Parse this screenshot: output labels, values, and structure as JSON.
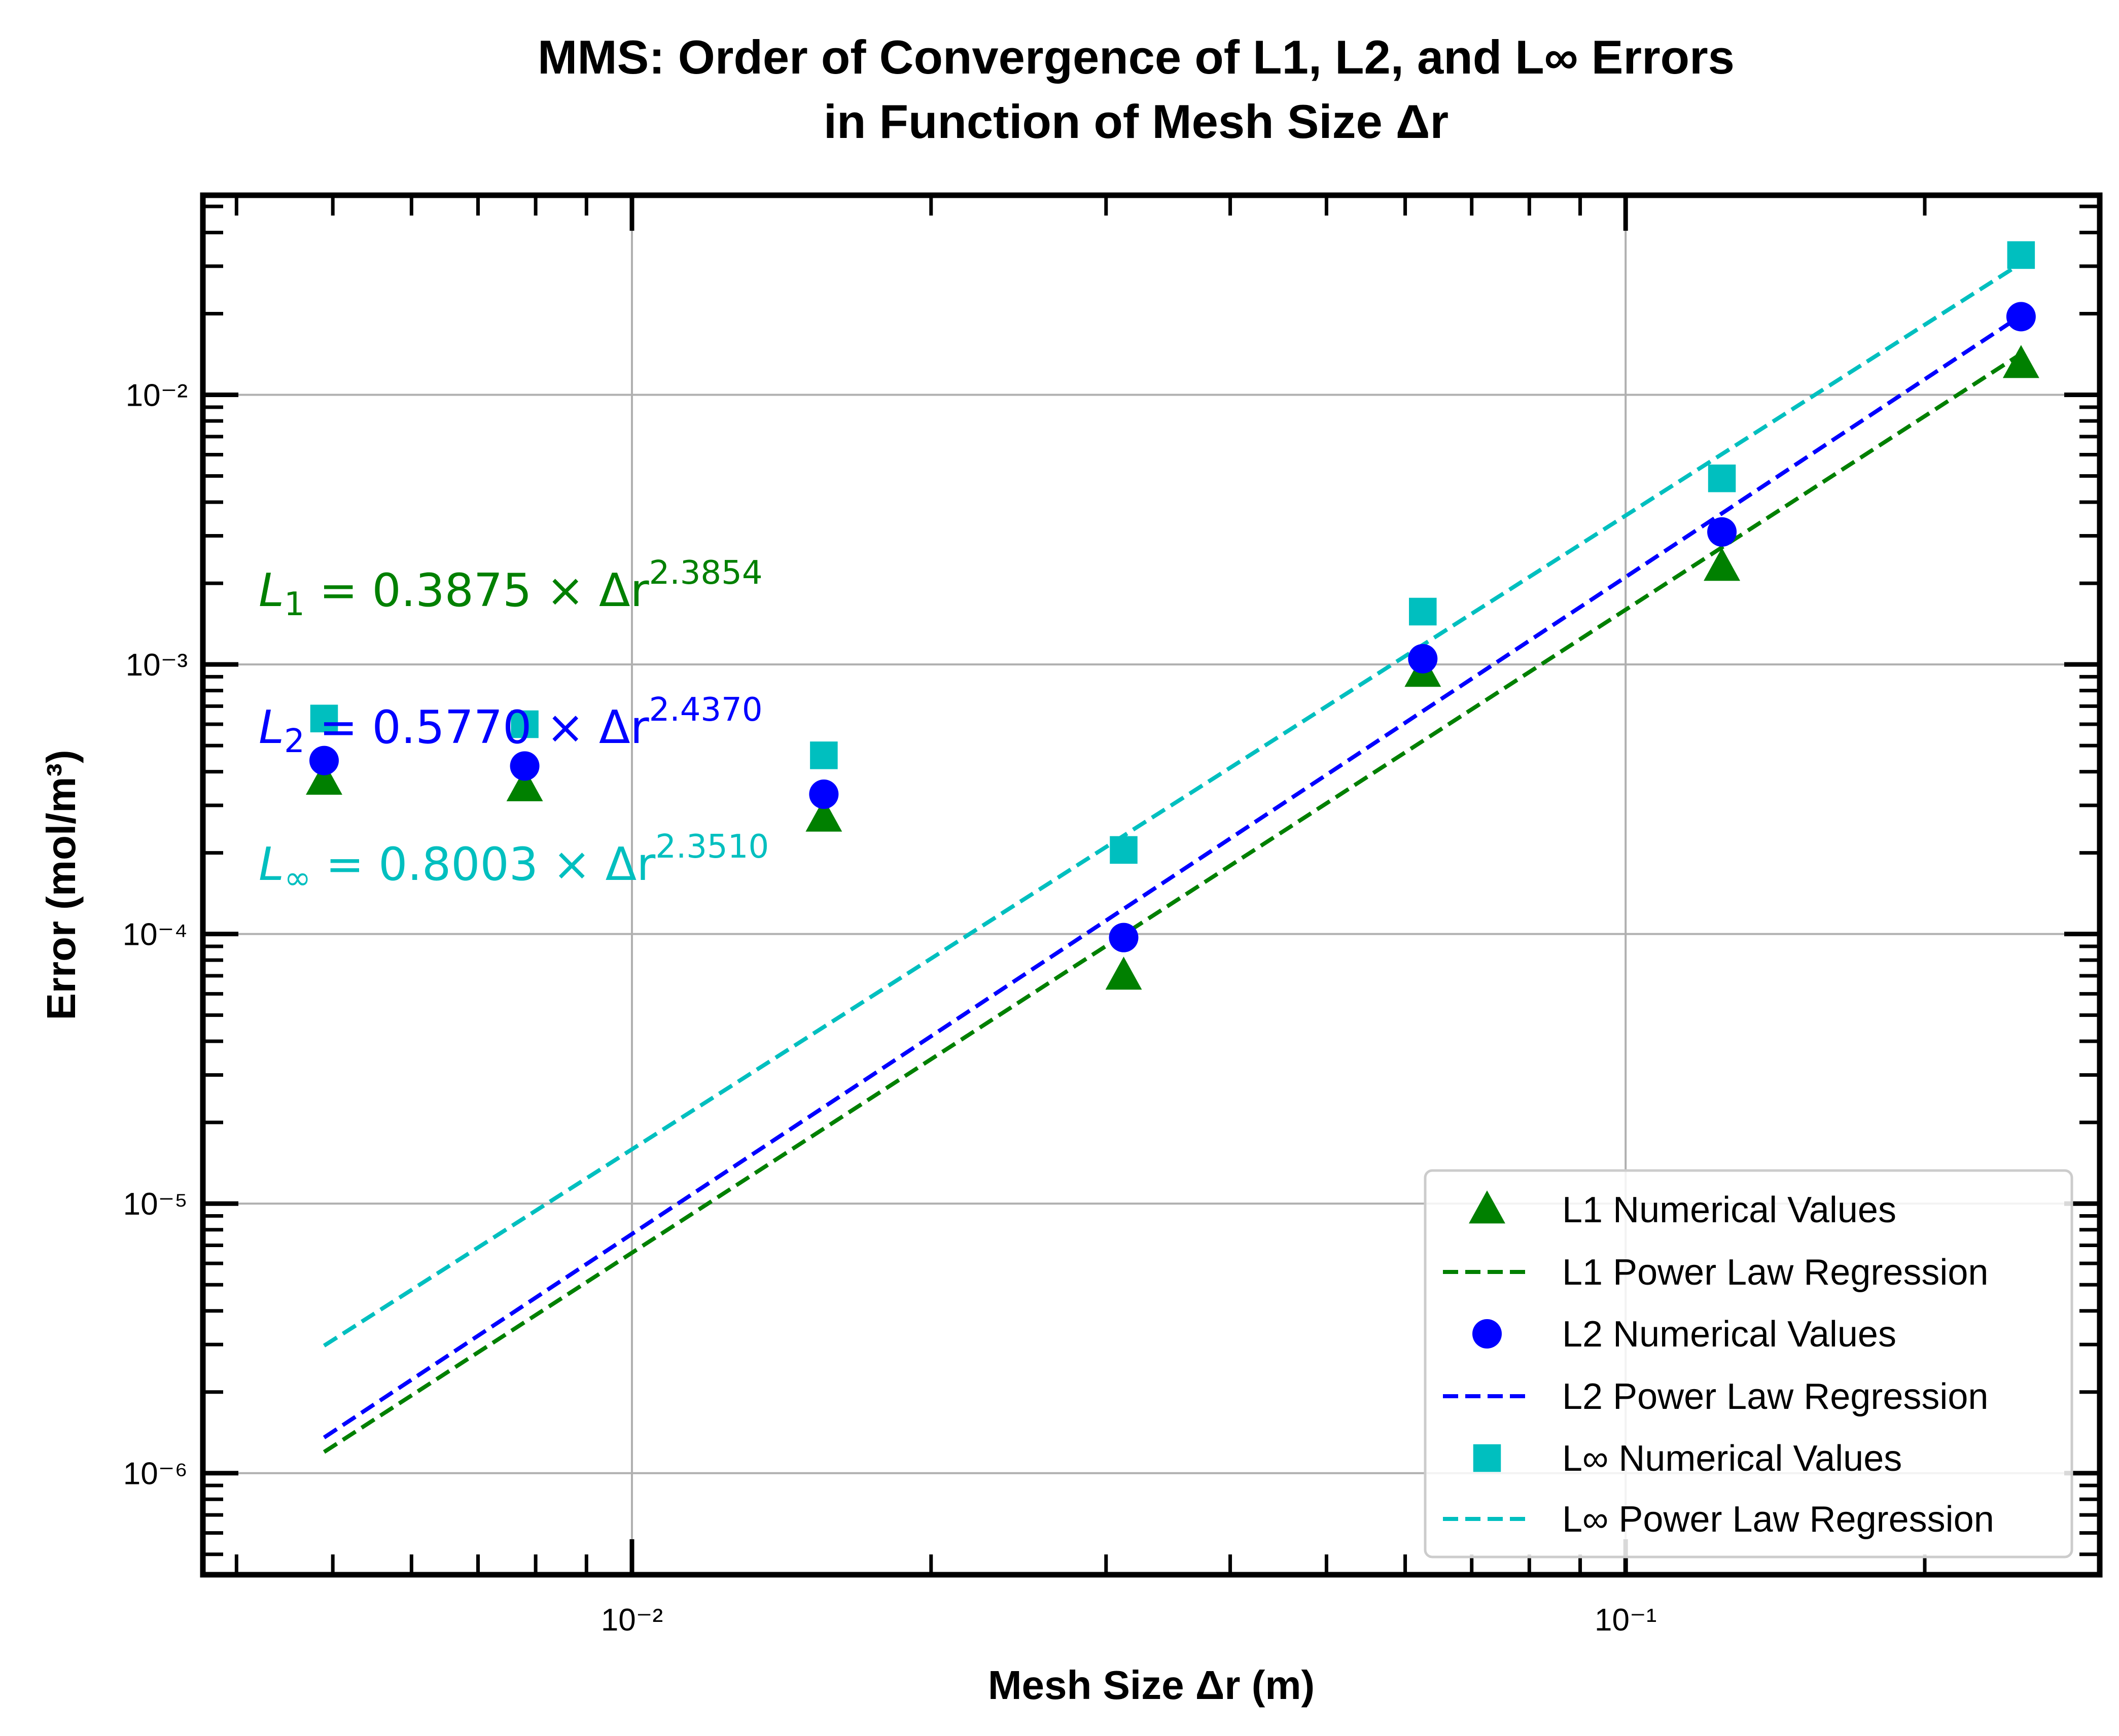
{
  "chart_data": {
    "type": "scatter",
    "title_line1": "MMS: Order of Convergence of L1, L2, and L∞ Errors",
    "title_line2": "in Function of Mesh Size Δr",
    "xlabel": "Mesh Size Δr (m)",
    "ylabel": "Error (mol/m³)",
    "x_scale": "log",
    "y_scale": "log",
    "xlim": [
      0.0037,
      0.3
    ],
    "ylim": [
      4.2e-07,
      0.055
    ],
    "grid": true,
    "legend_position": "lower-right",
    "x_ticks": [
      {
        "value": 0.01,
        "label": "10⁻²"
      },
      {
        "value": 0.1,
        "label": "10⁻¹"
      }
    ],
    "y_ticks": [
      {
        "value": 1e-06,
        "label": "10⁻⁶"
      },
      {
        "value": 1e-05,
        "label": "10⁻⁵"
      },
      {
        "value": 0.0001,
        "label": "10⁻⁴"
      },
      {
        "value": 0.001,
        "label": "10⁻³"
      },
      {
        "value": 0.01,
        "label": "10⁻²"
      }
    ],
    "x": [
      0.0049,
      0.0078,
      0.0156,
      0.03125,
      0.0625,
      0.125,
      0.25
    ],
    "series": [
      {
        "name": "L1 Numerical Values",
        "kind": "points",
        "marker": "triangle",
        "color": "#008000",
        "values": [
          0.00037,
          0.00035,
          0.00027,
          7e-05,
          0.00093,
          0.0023,
          0.013
        ]
      },
      {
        "name": "L1 Power Law Regression",
        "kind": "line",
        "color": "#008000",
        "coef": 0.3875,
        "exponent": 2.3854
      },
      {
        "name": "L2 Numerical Values",
        "kind": "points",
        "marker": "circle",
        "color": "#0000ff",
        "values": [
          0.00044,
          0.00042,
          0.00033,
          9.7e-05,
          0.00105,
          0.0031,
          0.0195
        ]
      },
      {
        "name": "L2 Power Law Regression",
        "kind": "line",
        "color": "#0000ff",
        "coef": 0.577,
        "exponent": 2.437
      },
      {
        "name": "L∞ Numerical Values",
        "kind": "points",
        "marker": "square",
        "color": "#00bfbf",
        "values": [
          0.00063,
          0.0006,
          0.00046,
          0.000205,
          0.00157,
          0.0049,
          0.033
        ]
      },
      {
        "name": "L∞ Power Law Regression",
        "kind": "line",
        "color": "#00bfbf",
        "coef": 0.8003,
        "exponent": 2.351
      }
    ],
    "annotations": [
      {
        "sub": "1",
        "text": " = 0.3875 × Δr",
        "sup": "2.3854",
        "color": "#008000"
      },
      {
        "sub": "2",
        "text": " = 0.5770 × Δr",
        "sup": "2.4370",
        "color": "#0000ff"
      },
      {
        "sub": "∞",
        "text": " = 0.8003 × Δr",
        "sup": "2.3510",
        "color": "#00bfbf"
      }
    ]
  }
}
